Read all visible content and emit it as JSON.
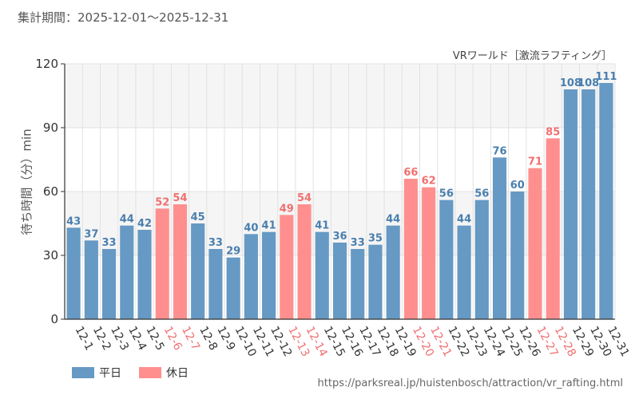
{
  "header": {
    "period_label": "集計期間：2025-12-01〜2025-12-31",
    "attraction": "VRワールド［激流ラフティング］"
  },
  "legend": {
    "weekday_label": "平日",
    "holiday_label": "休日"
  },
  "footer": {
    "source_url": "https://parksreal.jp/huistenbosch/attraction/vr_rafting.html"
  },
  "colors": {
    "weekday": "#6699c4",
    "holiday": "#ff8f8f",
    "weekday_text": "#4a7fae",
    "holiday_text": "#f07070",
    "band": "#f5f5f5",
    "grid": "#e2e2e2",
    "axis": "#333333"
  },
  "chart_data": {
    "type": "bar",
    "title": "VRワールド［激流ラフティング］",
    "ylabel": "待ち時間（分）min",
    "xlabel": "",
    "ylim": [
      0,
      120
    ],
    "yticks": [
      0,
      30,
      60,
      90,
      120
    ],
    "categories": [
      "12-1",
      "12-2",
      "12-3",
      "12-4",
      "12-5",
      "12-6",
      "12-7",
      "12-8",
      "12-9",
      "12-10",
      "12-11",
      "12-12",
      "12-13",
      "12-14",
      "12-15",
      "12-16",
      "12-17",
      "12-18",
      "12-19",
      "12-20",
      "12-21",
      "12-22",
      "12-23",
      "12-24",
      "12-25",
      "12-26",
      "12-27",
      "12-28",
      "12-29",
      "12-30",
      "12-31"
    ],
    "values": [
      43,
      37,
      33,
      44,
      42,
      52,
      54,
      45,
      33,
      29,
      40,
      41,
      49,
      54,
      41,
      36,
      33,
      35,
      44,
      66,
      62,
      56,
      44,
      56,
      76,
      60,
      71,
      85,
      108,
      108,
      111
    ],
    "day_type": [
      "weekday",
      "weekday",
      "weekday",
      "weekday",
      "weekday",
      "holiday",
      "holiday",
      "weekday",
      "weekday",
      "weekday",
      "weekday",
      "weekday",
      "holiday",
      "holiday",
      "weekday",
      "weekday",
      "weekday",
      "weekday",
      "weekday",
      "holiday",
      "holiday",
      "weekday",
      "weekday",
      "weekday",
      "weekday",
      "weekday",
      "holiday",
      "holiday",
      "weekday",
      "weekday",
      "weekday"
    ],
    "series_names": {
      "weekday": "平日",
      "holiday": "休日"
    },
    "legend_position": "bottom-left"
  }
}
